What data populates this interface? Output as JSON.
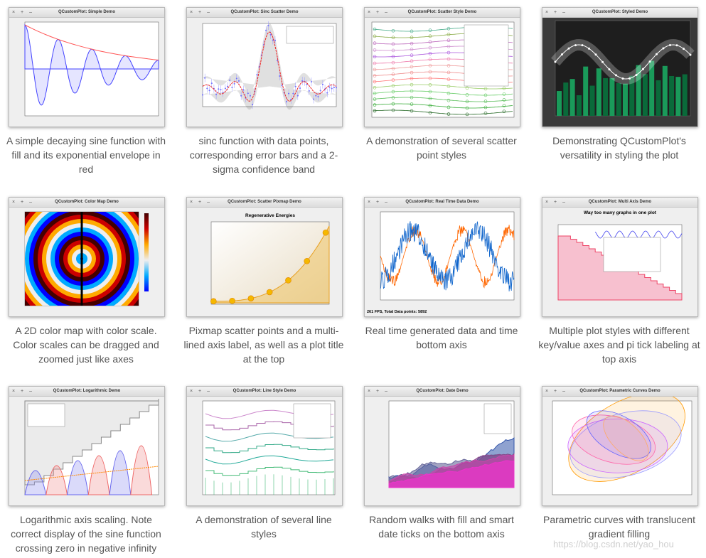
{
  "demos": [
    {
      "window_title": "QCustomPlot: Simple Demo",
      "caption": [
        "A simple decaying sine function with",
        "fill and its exponential envelope in",
        "red"
      ]
    },
    {
      "window_title": "QCustomPlot: Sinc Scatter Demo",
      "caption": [
        "sinc function with data points,",
        "corresponding error bars and a 2-",
        "sigma confidence band"
      ]
    },
    {
      "window_title": "QCustomPlot: Scatter Style Demo",
      "caption": [
        "A demonstration of several scatter",
        "point styles"
      ]
    },
    {
      "window_title": "QCustomPlot: Styled Demo",
      "caption": [
        "Demonstrating QCustomPlot's",
        "versatility in styling the plot"
      ]
    },
    {
      "window_title": "QCustomPlot: Color Map Demo",
      "caption": [
        "A 2D color map with color scale.",
        "Color scales can be dragged and",
        "zoomed just like axes"
      ]
    },
    {
      "window_title": "QCustomPlot: Scatter Pixmap Demo",
      "plot_title": "Regenerative Energies",
      "caption": [
        "Pixmap scatter points and a multi-",
        "lined axis label, as well as a plot title",
        "at the top"
      ]
    },
    {
      "window_title": "QCustomPlot: Real Time Data Demo",
      "status": "261 FPS, Total Data points: 5892",
      "caption": [
        "Real time generated data and time",
        "bottom axis"
      ]
    },
    {
      "window_title": "QCustomPlot: Multi Axis Demo",
      "plot_title": "Way too many graphs in one plot",
      "caption": [
        "Multiple plot styles with different",
        "key/value axes and pi tick labeling at",
        "top axis"
      ]
    },
    {
      "window_title": "QCustomPlot: Logarithmic Demo",
      "caption": [
        "Logarithmic axis scaling. Note",
        "correct display of the sine function",
        "crossing zero in negative infinity"
      ]
    },
    {
      "window_title": "QCustomPlot: Line Style Demo",
      "caption": [
        "A demonstration of several line",
        "styles"
      ]
    },
    {
      "window_title": "QCustomPlot: Date Demo",
      "caption": [
        "Random walks with fill and smart",
        "date ticks on the bottom axis"
      ]
    },
    {
      "window_title": "QCustomPlot: Parametric Curves Demo",
      "caption": [
        "Parametric curves with translucent",
        "gradient filling"
      ]
    }
  ],
  "watermark": "https://blog.csdn.net/yao_hou"
}
